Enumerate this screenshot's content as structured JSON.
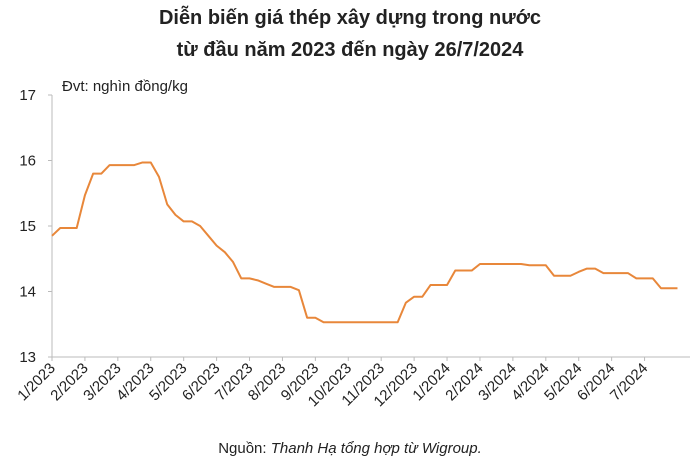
{
  "chart_data": {
    "type": "line",
    "title": [
      "Diễn biến giá thép xây dựng trong nước",
      "từ đầu năm 2023 đến ngày 26/7/2024"
    ],
    "unit_note": "Đvt: nghìn đồng/kg",
    "source": {
      "prefix": "Nguồn: ",
      "text": "Thanh Hạ tổng hợp từ Wigroup."
    },
    "categories": [
      "1/2023",
      null,
      null,
      null,
      "2/2023",
      null,
      null,
      null,
      "3/2023",
      null,
      null,
      null,
      "4/2023",
      null,
      null,
      null,
      "5/2023",
      null,
      null,
      null,
      "6/2023",
      null,
      null,
      null,
      "7/2023",
      null,
      null,
      null,
      "8/2023",
      null,
      null,
      null,
      "9/2023",
      null,
      null,
      null,
      "10/2023",
      null,
      null,
      null,
      "11/2023",
      null,
      null,
      null,
      "12/2023",
      null,
      null,
      null,
      "1/2024",
      null,
      null,
      null,
      "2/2024",
      null,
      null,
      null,
      "3/2024",
      null,
      null,
      null,
      "4/2024",
      null,
      null,
      null,
      "5/2024",
      null,
      null,
      null,
      "6/2024",
      null,
      null,
      null,
      "7/2024",
      null,
      null,
      null,
      null
    ],
    "series": [
      {
        "name": "Giá thép",
        "color": "#e8873a",
        "values": [
          14.85,
          14.97,
          14.97,
          14.97,
          15.47,
          15.8,
          15.8,
          15.93,
          15.93,
          15.93,
          15.93,
          15.97,
          15.97,
          15.75,
          15.33,
          15.17,
          15.07,
          15.07,
          15.0,
          14.85,
          14.7,
          14.6,
          14.45,
          14.2,
          14.2,
          14.17,
          14.12,
          14.07,
          14.07,
          14.07,
          14.02,
          13.6,
          13.6,
          13.53,
          13.53,
          13.53,
          13.53,
          13.53,
          13.53,
          13.53,
          13.53,
          13.53,
          13.53,
          13.83,
          13.92,
          13.92,
          14.1,
          14.1,
          14.1,
          14.32,
          14.32,
          14.32,
          14.42,
          14.42,
          14.42,
          14.42,
          14.42,
          14.42,
          14.4,
          14.4,
          14.4,
          14.24,
          14.24,
          14.24,
          14.3,
          14.35,
          14.35,
          14.28,
          14.28,
          14.28,
          14.28,
          14.2,
          14.2,
          14.2,
          14.05,
          14.05,
          14.05
        ]
      }
    ],
    "ylim": [
      13,
      17
    ],
    "yticks": [
      13,
      14,
      15,
      16,
      17
    ],
    "grid": false
  }
}
